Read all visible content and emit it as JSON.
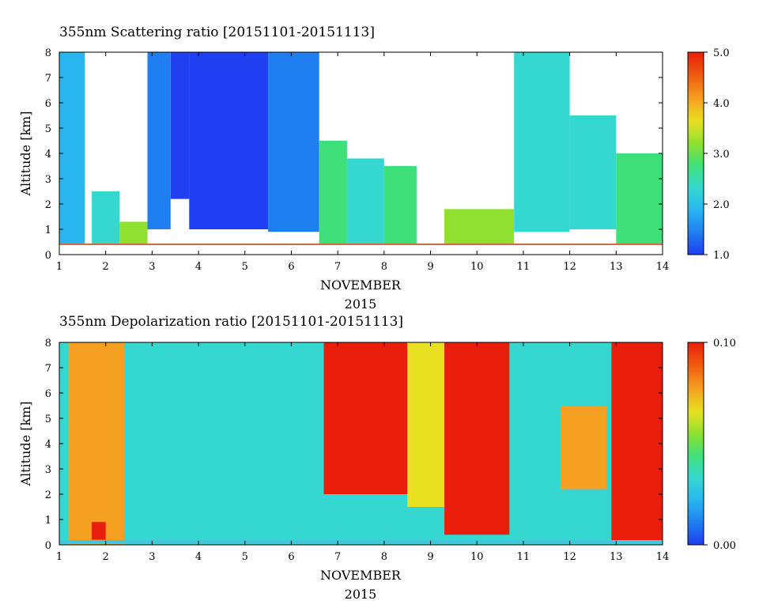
{
  "chart_data": [
    {
      "type": "heatmap",
      "title": "355nm Scattering ratio [20151101-20151113]",
      "xlabel": "NOVEMBER",
      "xlabel2": "2015",
      "ylabel": "Altitude [km]",
      "xlim": [
        1,
        14
      ],
      "ylim": [
        0,
        8
      ],
      "x_ticks": [
        "1",
        "2",
        "3",
        "4",
        "5",
        "6",
        "7",
        "8",
        "9",
        "10",
        "11",
        "12",
        "13",
        "14"
      ],
      "y_ticks": [
        "0",
        "1",
        "2",
        "3",
        "4",
        "5",
        "6",
        "7",
        "8"
      ],
      "colorbar": {
        "range": [
          1.0,
          5.0
        ],
        "tick_values": [
          1.0,
          2.0,
          3.0,
          4.0,
          5.0
        ],
        "tick_labels": [
          "1.0",
          "2.0",
          "3.0",
          "4.0",
          "5.0"
        ],
        "colors": [
          "#1f3ff0",
          "#1f7ff0",
          "#29b6f0",
          "#35d8d0",
          "#3fe07a",
          "#8fe030",
          "#e8e020",
          "#f5a020",
          "#f06010",
          "#e81e0a"
        ]
      },
      "features": [
        {
          "day_start": 1.0,
          "day_end": 1.55,
          "alt_low": 0.4,
          "alt_high": 8.0,
          "scattering_ratio": 2.0
        },
        {
          "day_start": 1.7,
          "day_end": 2.3,
          "alt_low": 0.4,
          "alt_high": 2.5,
          "scattering_ratio": 2.3
        },
        {
          "day_start": 2.3,
          "day_end": 2.9,
          "alt_low": 0.4,
          "alt_high": 1.3,
          "scattering_ratio": 3.0
        },
        {
          "day_start": 2.9,
          "day_end": 3.4,
          "alt_low": 1.0,
          "alt_high": 8.0,
          "scattering_ratio": 1.6
        },
        {
          "day_start": 3.4,
          "day_end": 3.8,
          "alt_low": 2.2,
          "alt_high": 8.0,
          "scattering_ratio": 1.3
        },
        {
          "day_start": 3.8,
          "day_end": 5.5,
          "alt_low": 1.0,
          "alt_high": 8.0,
          "scattering_ratio": 1.3
        },
        {
          "day_start": 5.5,
          "day_end": 6.6,
          "alt_low": 0.9,
          "alt_high": 8.0,
          "scattering_ratio": 1.5
        },
        {
          "day_start": 6.6,
          "day_end": 7.2,
          "alt_low": 0.4,
          "alt_high": 4.5,
          "scattering_ratio": 2.6
        },
        {
          "day_start": 7.2,
          "day_end": 8.0,
          "alt_low": 0.4,
          "alt_high": 3.8,
          "scattering_ratio": 2.2
        },
        {
          "day_start": 8.0,
          "day_end": 8.7,
          "alt_low": 0.4,
          "alt_high": 3.5,
          "scattering_ratio": 2.8
        },
        {
          "day_start": 9.3,
          "day_end": 10.8,
          "alt_low": 0.4,
          "alt_high": 1.8,
          "scattering_ratio": 3.2
        },
        {
          "day_start": 10.8,
          "day_end": 12.0,
          "alt_low": 0.9,
          "alt_high": 8.0,
          "scattering_ratio": 2.2
        },
        {
          "day_start": 12.0,
          "day_end": 13.0,
          "alt_low": 1.0,
          "alt_high": 5.5,
          "scattering_ratio": 2.4
        },
        {
          "day_start": 13.0,
          "day_end": 14.0,
          "alt_low": 0.4,
          "alt_high": 4.0,
          "scattering_ratio": 2.7
        }
      ]
    },
    {
      "type": "heatmap",
      "title": "355nm Depolarization ratio [20151101-20151113]",
      "xlabel": "NOVEMBER",
      "xlabel2": "2015",
      "ylabel": "Altitude [km]",
      "xlim": [
        1,
        14
      ],
      "ylim": [
        0,
        8
      ],
      "x_ticks": [
        "1",
        "2",
        "3",
        "4",
        "5",
        "6",
        "7",
        "8",
        "9",
        "10",
        "11",
        "12",
        "13",
        "14"
      ],
      "y_ticks": [
        "0",
        "1",
        "2",
        "3",
        "4",
        "5",
        "6",
        "7",
        "8"
      ],
      "colorbar": {
        "range": [
          0.0,
          0.1
        ],
        "tick_values": [
          0.0,
          0.1
        ],
        "tick_labels": [
          "0.00",
          "0.10"
        ],
        "colors": [
          "#1f3ff0",
          "#1f7ff0",
          "#29b6f0",
          "#35d8d0",
          "#3fe07a",
          "#8fe030",
          "#e8e020",
          "#f5a020",
          "#f06010",
          "#e81e0a"
        ]
      },
      "features": [
        {
          "day_start": 1.0,
          "day_end": 14.0,
          "alt_low": 0.0,
          "alt_high": 8.0,
          "depolarization_ratio": 0.03
        },
        {
          "day_start": 1.2,
          "day_end": 2.4,
          "alt_low": 0.0,
          "alt_high": 8.0,
          "depolarization_ratio": 0.08
        },
        {
          "day_start": 1.7,
          "day_end": 2.0,
          "alt_low": 0.2,
          "alt_high": 0.9,
          "depolarization_ratio": 0.1
        },
        {
          "day_start": 6.7,
          "day_end": 8.5,
          "alt_low": 2.0,
          "alt_high": 8.0,
          "depolarization_ratio": 0.09
        },
        {
          "day_start": 8.5,
          "day_end": 9.3,
          "alt_low": 1.5,
          "alt_high": 8.0,
          "depolarization_ratio": 0.06
        },
        {
          "day_start": 9.3,
          "day_end": 10.7,
          "alt_low": 0.4,
          "alt_high": 8.0,
          "depolarization_ratio": 0.1
        },
        {
          "day_start": 11.8,
          "day_end": 12.8,
          "alt_low": 2.2,
          "alt_high": 5.5,
          "depolarization_ratio": 0.08
        },
        {
          "day_start": 12.9,
          "day_end": 14.0,
          "alt_low": 0.1,
          "alt_high": 8.0,
          "depolarization_ratio": 0.09
        }
      ]
    }
  ]
}
